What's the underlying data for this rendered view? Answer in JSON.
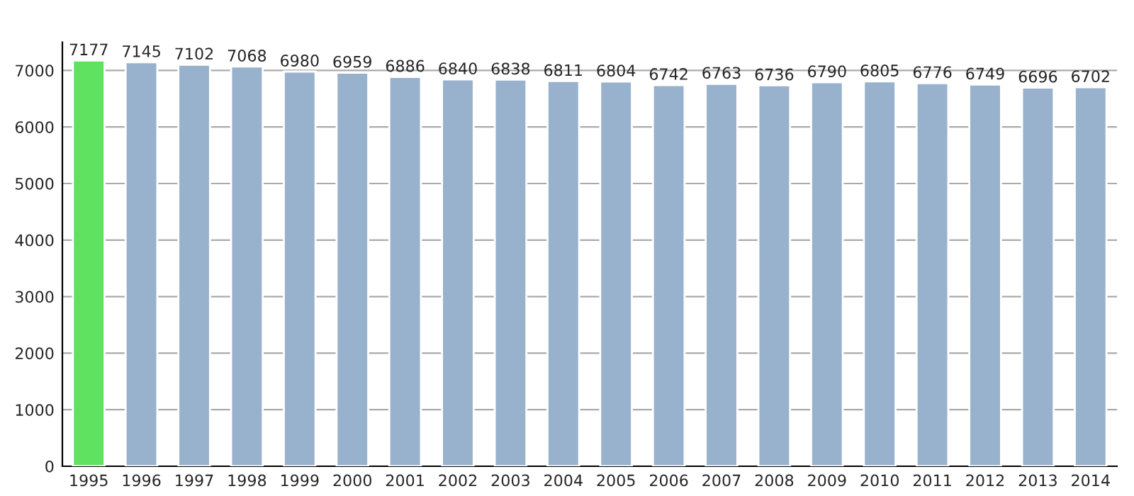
{
  "chart_data": {
    "type": "bar",
    "categories": [
      "1995",
      "1996",
      "1997",
      "1998",
      "1999",
      "2000",
      "2001",
      "2002",
      "2003",
      "2004",
      "2005",
      "2006",
      "2007",
      "2008",
      "2009",
      "2010",
      "2011",
      "2012",
      "2013",
      "2014"
    ],
    "values": [
      7177,
      7145,
      7102,
      7068,
      6980,
      6959,
      6886,
      6840,
      6838,
      6811,
      6804,
      6742,
      6763,
      6736,
      6790,
      6805,
      6776,
      6749,
      6696,
      6702
    ],
    "colors": [
      "#5fe25f",
      "#98b1cc",
      "#98b1cc",
      "#98b1cc",
      "#98b1cc",
      "#98b1cc",
      "#98b1cc",
      "#98b1cc",
      "#98b1cc",
      "#98b1cc",
      "#98b1cc",
      "#98b1cc",
      "#98b1cc",
      "#98b1cc",
      "#98b1cc",
      "#98b1cc",
      "#98b1cc",
      "#98b1cc",
      "#98b1cc",
      "#98b1cc"
    ],
    "ylim": [
      0,
      7500
    ],
    "yticks": [
      0,
      1000,
      2000,
      3000,
      4000,
      5000,
      6000,
      7000
    ],
    "grid": "y",
    "data_labels": true,
    "legend": false
  }
}
